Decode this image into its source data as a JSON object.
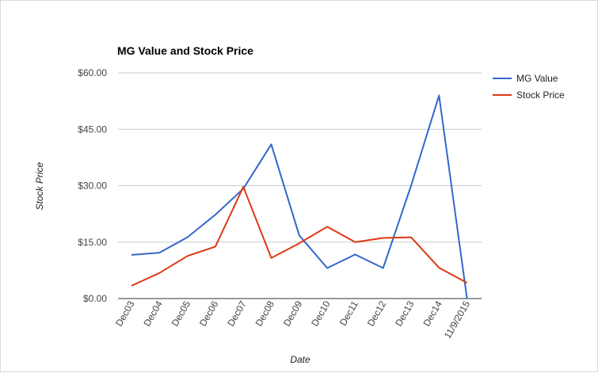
{
  "chart_data": {
    "type": "line",
    "title": "MG Value and Stock Price",
    "xlabel": "Date",
    "ylabel": "Stock Price",
    "categories": [
      "Dec03",
      "Dec04",
      "Dec05",
      "Dec06",
      "Dec07",
      "Dec08",
      "Dec09",
      "Dec10",
      "Dec11",
      "Dec12",
      "Dec13",
      "Dec14",
      "11/9/2015"
    ],
    "series": [
      {
        "name": "MG Value",
        "color": "#3366cc",
        "values": [
          11.6,
          12.2,
          16.3,
          22.3,
          29.2,
          41.0,
          16.8,
          8.1,
          11.7,
          8.1,
          30.0,
          54.0,
          0.0
        ]
      },
      {
        "name": "Stock Price",
        "color": "#dc3912",
        "values": [
          3.4,
          6.8,
          11.3,
          13.8,
          29.7,
          10.8,
          14.7,
          19.1,
          15.0,
          16.1,
          16.3,
          8.2,
          4.2
        ]
      }
    ],
    "yticks": [
      "$0.00",
      "$15.00",
      "$30.00",
      "$45.00",
      "$60.00"
    ],
    "ytick_values": [
      0,
      15,
      30,
      45,
      60
    ],
    "ylim": [
      0,
      60
    ],
    "grid": true,
    "legend_position": "right"
  }
}
